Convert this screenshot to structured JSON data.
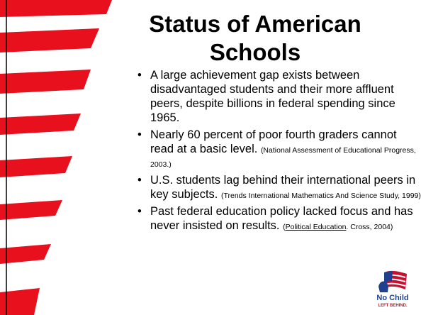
{
  "title": "Status of American Schools",
  "bullets": [
    {
      "text": "A large achievement gap exists between disadvantaged students and their more affluent peers, despite billions in federal spending since 1965."
    },
    {
      "text": "Nearly 60 percent of poor fourth graders cannot read at a basic level.",
      "citation": "(National Assessment of Educational Progress, 2003.)"
    },
    {
      "text": "U.S. students lag behind their international peers in key subjects.",
      "citation": "(Trends International Mathematics And Science Study, 1999)."
    },
    {
      "text": "Past federal education policy lacked focus and has never insisted on results.",
      "citation_open": "(",
      "citation_link": "Political Education",
      "citation_rest": ". Cross, 2004)"
    }
  ],
  "logo": {
    "line1": "No Child",
    "line2": "LEFT BEHIND."
  }
}
